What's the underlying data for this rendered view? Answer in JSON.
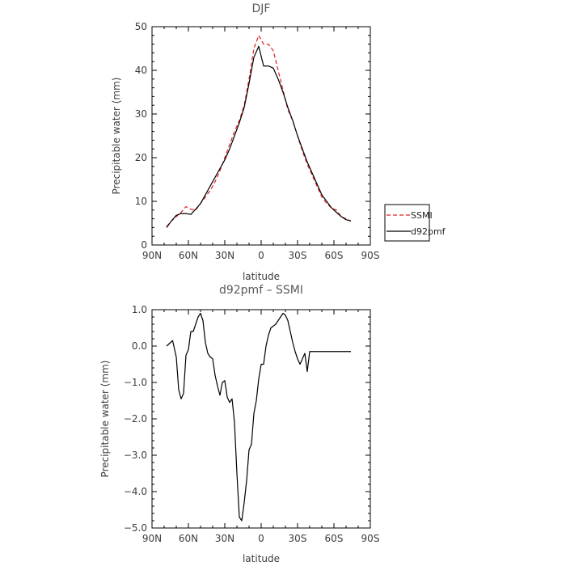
{
  "colors": {
    "ssmi": "#e02020",
    "d92pmf": "#000000"
  },
  "chart_data": [
    {
      "type": "line",
      "title": "DJF",
      "xlabel": "latitude",
      "ylabel": "Precipitable water (mm)",
      "xlim": [
        90,
        -90
      ],
      "ylim": [
        0,
        50
      ],
      "xticks": [
        90,
        60,
        30,
        0,
        -30,
        -60,
        -90
      ],
      "xticklabels": [
        "90N",
        "60N",
        "30N",
        "0",
        "30S",
        "60S",
        "90S"
      ],
      "yticks": [
        0,
        10,
        20,
        30,
        40,
        50
      ],
      "yticklabels": [
        "0",
        "10",
        "20",
        "30",
        "40",
        "50"
      ],
      "legend": {
        "position": "right, outside plot"
      },
      "series": [
        {
          "name": "SSMI",
          "style": "dashed",
          "color": "#e02020",
          "x": [
            78,
            74,
            70,
            66,
            62,
            58,
            54,
            50,
            46,
            42,
            38,
            34,
            30,
            26,
            22,
            18,
            14,
            10,
            6,
            2,
            -2,
            -6,
            -10,
            -14,
            -18,
            -22,
            -26,
            -30,
            -34,
            -38,
            -42,
            -46,
            -50,
            -54,
            -58,
            -62,
            -66,
            -70,
            -74
          ],
          "values": [
            4.2,
            5.5,
            6.5,
            7.5,
            8.8,
            8.2,
            8.0,
            9.5,
            11.0,
            12.5,
            14.5,
            17.0,
            20.0,
            23.0,
            26.0,
            28.5,
            32.0,
            38.0,
            45.0,
            48.0,
            46.0,
            46.0,
            44.5,
            40.0,
            35.5,
            31.0,
            28.5,
            25.0,
            21.5,
            18.5,
            16.0,
            13.5,
            11.0,
            9.5,
            8.5,
            8.0,
            6.5,
            6.0,
            5.5
          ]
        },
        {
          "name": "d92pmf",
          "style": "solid",
          "color": "#000000",
          "x": [
            78,
            74,
            70,
            66,
            62,
            58,
            54,
            50,
            46,
            42,
            38,
            34,
            30,
            26,
            22,
            18,
            14,
            10,
            6,
            2,
            -2,
            -6,
            -10,
            -14,
            -18,
            -22,
            -26,
            -30,
            -34,
            -38,
            -42,
            -46,
            -50,
            -54,
            -58,
            -62,
            -66,
            -70,
            -74
          ],
          "values": [
            4.0,
            5.5,
            6.8,
            7.2,
            7.2,
            7.0,
            8.2,
            9.5,
            11.5,
            13.5,
            15.5,
            17.5,
            19.5,
            22.0,
            25.0,
            28.0,
            31.5,
            37.0,
            43.0,
            45.5,
            41.0,
            41.0,
            40.5,
            38.0,
            35.0,
            31.5,
            28.5,
            25.0,
            22.0,
            19.0,
            16.5,
            14.0,
            11.5,
            10.0,
            8.5,
            7.5,
            6.5,
            5.8,
            5.5
          ]
        }
      ]
    },
    {
      "type": "line",
      "title": "d92pmf – SSMI",
      "xlabel": "latitude",
      "ylabel": "Precipitable water (mm)",
      "xlim": [
        90,
        -90
      ],
      "ylim": [
        -5.0,
        1.0
      ],
      "xticks": [
        90,
        60,
        30,
        0,
        -30,
        -60,
        -90
      ],
      "xticklabels": [
        "90N",
        "60N",
        "30N",
        "0",
        "30S",
        "60S",
        "90S"
      ],
      "yticks": [
        1.0,
        0.0,
        -1.0,
        -2.0,
        -3.0,
        -4.0,
        -5.0
      ],
      "yticklabels": [
        "1.0",
        "0.0",
        "−1.0",
        "−2.0",
        "−3.0",
        "−4.0",
        "−5.0"
      ],
      "series": [
        {
          "style": "solid",
          "color": "#000000",
          "x": [
            78,
            73,
            70,
            68,
            66,
            64,
            62,
            60,
            58,
            56,
            54,
            52,
            50,
            48,
            46,
            44,
            42,
            40,
            38,
            36,
            34,
            32,
            30,
            28,
            26,
            24,
            22,
            20,
            18,
            16,
            14,
            12,
            10,
            8,
            6,
            4,
            2,
            0,
            -2,
            -4,
            -6,
            -8,
            -10,
            -12,
            -14,
            -16,
            -18,
            -20,
            -22,
            -24,
            -26,
            -28,
            -30,
            -32,
            -34,
            -36,
            -38,
            -40,
            -42,
            -44,
            -46,
            -48,
            -50,
            -52,
            -54,
            -56,
            -58,
            -60,
            -62,
            -64,
            -66,
            -68,
            -70,
            -72,
            -74
          ],
          "values": [
            0.0,
            0.15,
            -0.3,
            -1.2,
            -1.45,
            -1.3,
            -0.25,
            -0.1,
            0.4,
            0.4,
            0.6,
            0.8,
            0.9,
            0.7,
            0.1,
            -0.2,
            -0.3,
            -0.35,
            -0.8,
            -1.1,
            -1.35,
            -1.0,
            -0.95,
            -1.4,
            -1.55,
            -1.45,
            -2.1,
            -3.5,
            -4.7,
            -4.8,
            -4.3,
            -3.7,
            -2.85,
            -2.7,
            -1.85,
            -1.5,
            -0.9,
            -0.5,
            -0.5,
            0.0,
            0.3,
            0.5,
            0.55,
            0.6,
            0.7,
            0.8,
            0.9,
            0.85,
            0.7,
            0.4,
            0.1,
            -0.15,
            -0.35,
            -0.5,
            -0.35,
            -0.2,
            -0.7,
            -0.15,
            -0.15,
            -0.15,
            -0.15,
            -0.15,
            -0.15,
            -0.15,
            -0.15,
            -0.15,
            -0.15,
            -0.15,
            -0.15,
            -0.15,
            -0.15,
            -0.15,
            -0.15,
            -0.15,
            -0.15
          ]
        }
      ]
    }
  ]
}
